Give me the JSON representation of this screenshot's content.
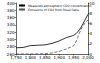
{
  "chart_data": {
    "type": "line",
    "series": [
      {
        "name": "Measured atmospheric CO2 concentration",
        "color": "#000000",
        "line_style": "solid",
        "x": [
          1750,
          1775,
          1800,
          1825,
          1850,
          1875,
          1900,
          1925,
          1950,
          1960,
          1970,
          1980,
          1990,
          2000
        ],
        "values": [
          277,
          278,
          283,
          284,
          285,
          289,
          296,
          305,
          311,
          317,
          326,
          339,
          354,
          369
        ]
      },
      {
        "name": "Emissions of CO2 from fossil fuels",
        "color": "#555555",
        "line_style": "dashed",
        "axis": "y2",
        "x": [
          1750,
          1800,
          1850,
          1875,
          1900,
          1925,
          1950,
          1960,
          1970,
          1980,
          1990,
          2000
        ],
        "values": [
          0,
          0.01,
          0.05,
          0.2,
          0.5,
          1.0,
          1.6,
          2.6,
          4.1,
          5.3,
          6.1,
          6.7
        ]
      }
    ],
    "xlim": [
      1750,
      2000
    ],
    "xticks": [
      1750,
      1800,
      1850,
      1900,
      1950,
      2000
    ],
    "ylim": [
      260,
      400
    ],
    "yticks": [
      260,
      280,
      300,
      320,
      340,
      360,
      380,
      400
    ],
    "y2lim": [
      0,
      10
    ],
    "y2ticks": [
      0,
      2,
      4,
      6,
      8,
      10
    ],
    "legend": "top-left",
    "grid": false
  }
}
